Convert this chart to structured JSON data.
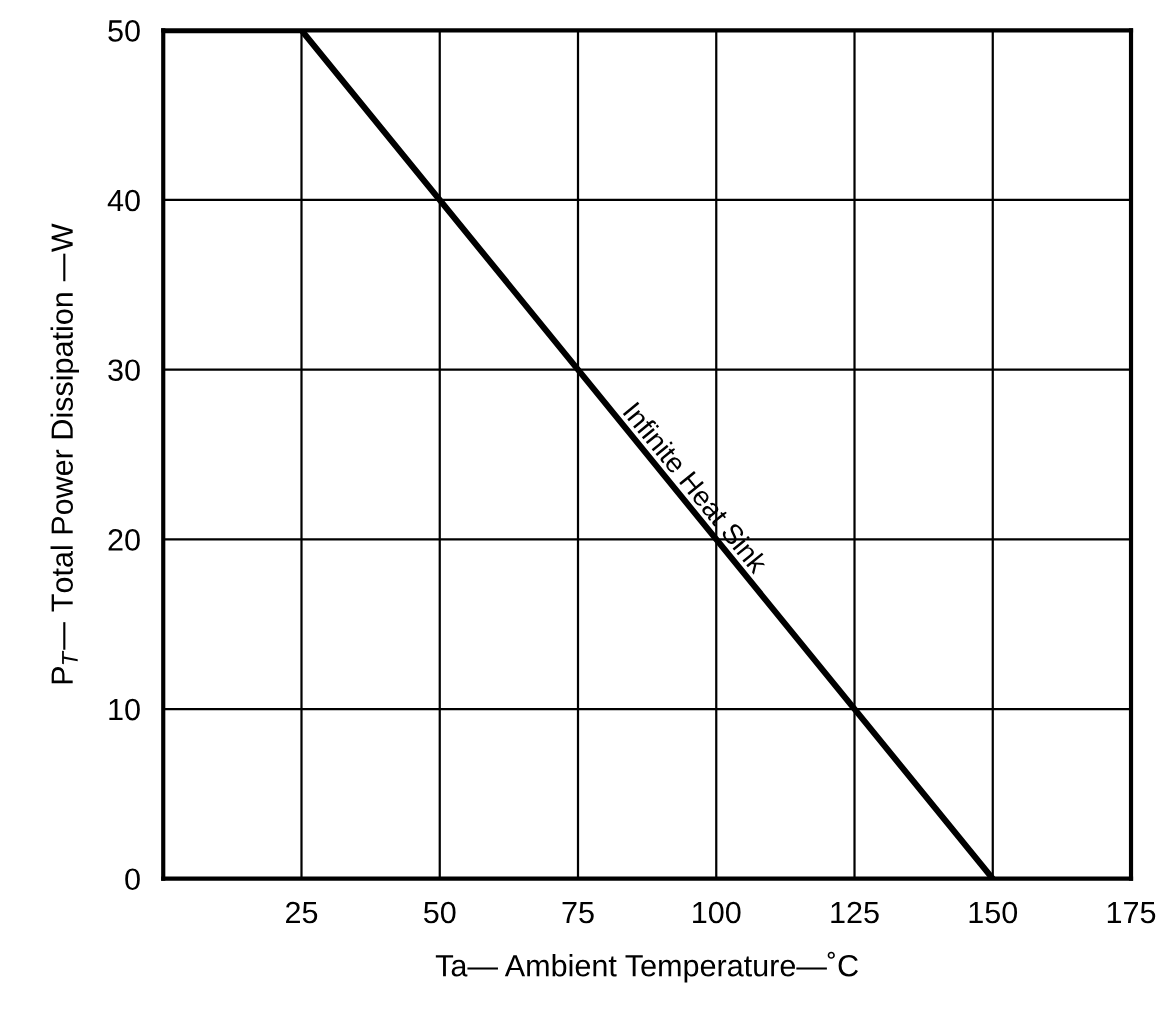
{
  "chart_data": {
    "type": "line",
    "xlabel": "Ta— Ambient Temperature—˚C",
    "ylabel": "P$_{T}$— Total Power Dissipation —W",
    "x": [
      0,
      25,
      150
    ],
    "series": [
      {
        "color": "#000000",
        "values": [
          50,
          50,
          0
        ]
      }
    ],
    "xlim": [
      0,
      175
    ],
    "xticks": [
      {
        "value": 0,
        "label": null
      },
      25,
      50,
      75,
      100,
      125,
      150,
      175
    ],
    "ylim": [
      0,
      50
    ],
    "yticks": [
      0,
      10,
      20,
      30,
      40,
      50
    ],
    "grid": true,
    "marker": "none",
    "line_style": "solid",
    "annotations": [
      {
        "text": "Infinite Heat Sink",
        "x": 94,
        "y": 22.5
      }
    ]
  }
}
